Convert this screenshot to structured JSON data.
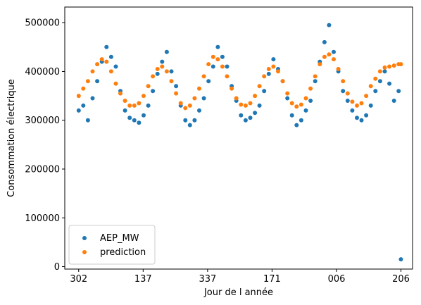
{
  "chart_data": {
    "type": "scatter",
    "xlabel": "Jour de l année",
    "ylabel": "Consommation électrique",
    "x_tick_labels": [
      "302",
      "137",
      "337",
      "171",
      "006",
      "206"
    ],
    "y_ticks": [
      0,
      100000,
      200000,
      300000,
      400000,
      500000
    ],
    "y_tick_labels": [
      "0",
      "100000",
      "200000",
      "300000",
      "400000",
      "500000"
    ],
    "xlim": [
      -60,
      1440
    ],
    "ylim": [
      -5000,
      532000
    ],
    "legend_position": "lower left",
    "series": [
      {
        "name": "AEP_MW",
        "color": "#1f77b4",
        "marker": "dot",
        "x": [
          0,
          20,
          40,
          60,
          80,
          100,
          120,
          140,
          160,
          180,
          200,
          220,
          240,
          260,
          280,
          300,
          320,
          340,
          360,
          380,
          400,
          420,
          440,
          460,
          480,
          500,
          520,
          540,
          560,
          580,
          600,
          620,
          640,
          660,
          680,
          700,
          720,
          740,
          760,
          780,
          800,
          820,
          840,
          860,
          880,
          900,
          920,
          940,
          960,
          980,
          1000,
          1020,
          1040,
          1060,
          1080,
          1100,
          1120,
          1140,
          1160,
          1180,
          1200,
          1220,
          1240,
          1260,
          1280,
          1300,
          1320,
          1340,
          1360,
          1380,
          1390
        ],
        "y": [
          320000,
          330000,
          300000,
          345000,
          380000,
          420000,
          450000,
          430000,
          410000,
          360000,
          320000,
          305000,
          300000,
          295000,
          310000,
          330000,
          360000,
          395000,
          420000,
          440000,
          400000,
          370000,
          330000,
          300000,
          290000,
          300000,
          320000,
          345000,
          380000,
          410000,
          450000,
          430000,
          410000,
          370000,
          340000,
          310000,
          300000,
          305000,
          315000,
          330000,
          360000,
          395000,
          425000,
          405000,
          380000,
          345000,
          310000,
          290000,
          300000,
          320000,
          340000,
          380000,
          420000,
          460000,
          495000,
          440000,
          400000,
          360000,
          340000,
          320000,
          305000,
          300000,
          310000,
          330000,
          360000,
          380000,
          400000,
          375000,
          340000,
          360000,
          15000
        ]
      },
      {
        "name": "prediction",
        "color": "#ff7f0e",
        "marker": "dot",
        "x": [
          0,
          20,
          40,
          60,
          80,
          100,
          120,
          140,
          160,
          180,
          200,
          220,
          240,
          260,
          280,
          300,
          320,
          340,
          360,
          380,
          400,
          420,
          440,
          460,
          480,
          500,
          520,
          540,
          560,
          580,
          600,
          620,
          640,
          660,
          680,
          700,
          720,
          740,
          760,
          780,
          800,
          820,
          840,
          860,
          880,
          900,
          920,
          940,
          960,
          980,
          1000,
          1020,
          1040,
          1060,
          1080,
          1100,
          1120,
          1140,
          1160,
          1180,
          1200,
          1220,
          1240,
          1260,
          1280,
          1300,
          1320,
          1340,
          1360,
          1380,
          1390
        ],
        "y": [
          350000,
          365000,
          380000,
          400000,
          415000,
          425000,
          420000,
          400000,
          375000,
          355000,
          340000,
          330000,
          330000,
          335000,
          350000,
          370000,
          390000,
          405000,
          410000,
          400000,
          380000,
          355000,
          335000,
          325000,
          330000,
          345000,
          365000,
          390000,
          415000,
          430000,
          425000,
          410000,
          390000,
          365000,
          345000,
          332000,
          330000,
          335000,
          350000,
          370000,
          390000,
          405000,
          410000,
          400000,
          380000,
          355000,
          335000,
          328000,
          332000,
          345000,
          365000,
          390000,
          415000,
          430000,
          435000,
          425000,
          405000,
          380000,
          355000,
          338000,
          330000,
          335000,
          350000,
          370000,
          385000,
          400000,
          408000,
          410000,
          412000,
          415000,
          415000
        ]
      }
    ]
  }
}
